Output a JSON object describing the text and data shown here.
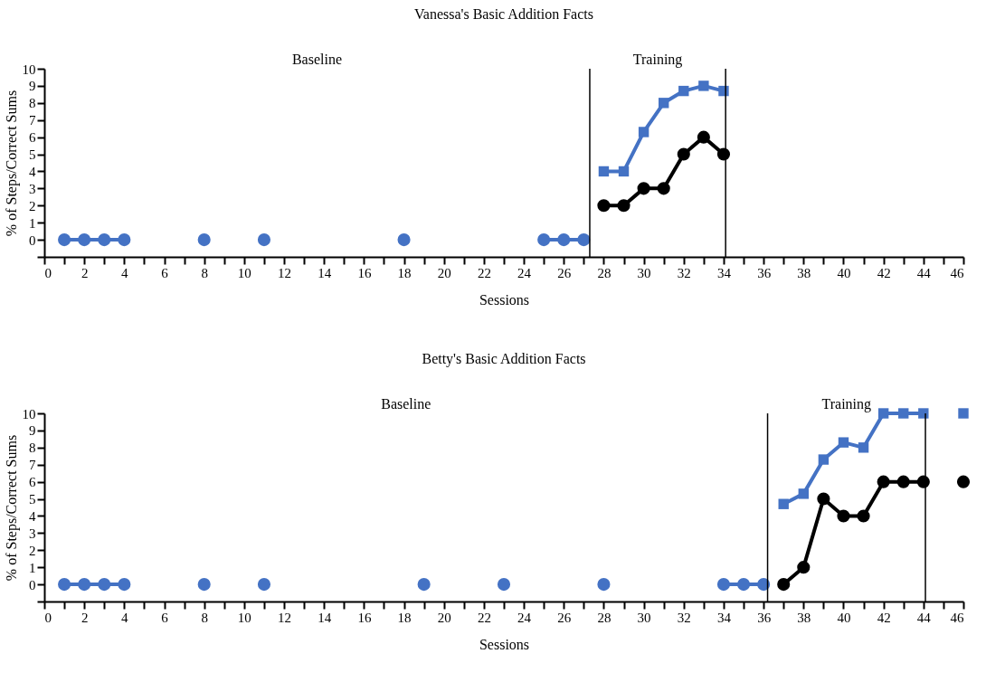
{
  "chart_data": [
    {
      "type": "line",
      "title": "Vanessa's Basic Addition Facts",
      "xlabel": "Sessions",
      "ylabel": "% of Steps/Correct Sums",
      "xlim": [
        0,
        46
      ],
      "ylim": [
        -1,
        10
      ],
      "xticks": [
        0,
        {
          "value": 1,
          "label": null
        },
        2,
        {
          "value": 3,
          "label": null
        },
        4,
        {
          "value": 5,
          "label": null
        },
        6,
        {
          "value": 7,
          "label": null
        },
        8,
        {
          "value": 9,
          "label": null
        },
        10,
        {
          "value": 11,
          "label": null
        },
        12,
        {
          "value": 13,
          "label": null
        },
        14,
        {
          "value": 15,
          "label": null
        },
        16,
        {
          "value": 17,
          "label": null
        },
        18,
        {
          "value": 19,
          "label": null
        },
        20,
        {
          "value": 21,
          "label": null
        },
        22,
        {
          "value": 23,
          "label": null
        },
        24,
        {
          "value": 25,
          "label": null
        },
        26,
        {
          "value": 27,
          "label": null
        },
        28,
        {
          "value": 29,
          "label": null
        },
        30,
        {
          "value": 31,
          "label": null
        },
        32,
        {
          "value": 33,
          "label": null
        },
        34,
        {
          "value": 35,
          "label": null
        },
        36,
        {
          "value": 37,
          "label": null
        },
        38,
        {
          "value": 39,
          "label": null
        },
        40,
        {
          "value": 41,
          "label": null
        },
        42,
        {
          "value": 43,
          "label": null
        },
        44,
        {
          "value": 45,
          "label": null
        },
        46
      ],
      "yticks": [
        {
          "value": -1,
          "label": null
        },
        0,
        1,
        2,
        3,
        4,
        5,
        6,
        7,
        8,
        9,
        10
      ],
      "grid": false,
      "line_style": "solid",
      "series": [
        {
          "color": "#4472c4",
          "marker": "circle",
          "x": [
            1,
            2,
            3,
            4,
            5,
            8,
            9,
            11,
            12,
            18,
            19,
            25,
            26,
            27
          ],
          "values": [
            0,
            0,
            0,
            0,
            null,
            0,
            null,
            0,
            null,
            0,
            null,
            0,
            0,
            0
          ]
        },
        {
          "color": "#4472c4",
          "marker": "square",
          "x": [
            28,
            29,
            30,
            31,
            32,
            33,
            34
          ],
          "values": [
            4,
            4,
            6.3,
            8,
            8.7,
            9,
            8.7
          ]
        },
        {
          "color": "#000000",
          "marker": "circle",
          "x": [
            28,
            29,
            30,
            31,
            32,
            33,
            34
          ],
          "values": [
            2,
            2,
            3,
            3,
            5,
            6,
            5
          ]
        }
      ],
      "ref_lines": [
        {
          "axis": "x",
          "value": 27.3,
          "color": "#000000"
        },
        {
          "axis": "x",
          "value": 34.1,
          "color": "#000000"
        }
      ],
      "annotations": [
        "Baseline",
        "Training"
      ]
    },
    {
      "type": "line",
      "title": "Betty's Basic Addition Facts",
      "xlabel": "Sessions",
      "ylabel": "% of Steps/Correct Sums",
      "xlim": [
        0,
        46
      ],
      "ylim": [
        -1,
        10
      ],
      "xticks": [
        0,
        {
          "value": 1,
          "label": null
        },
        2,
        {
          "value": 3,
          "label": null
        },
        4,
        {
          "value": 5,
          "label": null
        },
        6,
        {
          "value": 7,
          "label": null
        },
        8,
        {
          "value": 9,
          "label": null
        },
        10,
        {
          "value": 11,
          "label": null
        },
        12,
        {
          "value": 13,
          "label": null
        },
        14,
        {
          "value": 15,
          "label": null
        },
        16,
        {
          "value": 17,
          "label": null
        },
        18,
        {
          "value": 19,
          "label": null
        },
        20,
        {
          "value": 21,
          "label": null
        },
        22,
        {
          "value": 23,
          "label": null
        },
        24,
        {
          "value": 25,
          "label": null
        },
        26,
        {
          "value": 27,
          "label": null
        },
        28,
        {
          "value": 29,
          "label": null
        },
        30,
        {
          "value": 31,
          "label": null
        },
        32,
        {
          "value": 33,
          "label": null
        },
        34,
        {
          "value": 35,
          "label": null
        },
        36,
        {
          "value": 37,
          "label": null
        },
        38,
        {
          "value": 39,
          "label": null
        },
        40,
        {
          "value": 41,
          "label": null
        },
        42,
        {
          "value": 43,
          "label": null
        },
        44,
        {
          "value": 45,
          "label": null
        },
        46
      ],
      "yticks": [
        {
          "value": -1,
          "label": null
        },
        0,
        1,
        2,
        3,
        4,
        5,
        6,
        7,
        8,
        9,
        10
      ],
      "grid": false,
      "line_style": "solid",
      "series": [
        {
          "color": "#4472c4",
          "marker": "circle",
          "x": [
            1,
            2,
            3,
            4,
            5,
            8,
            9,
            11,
            12,
            19,
            20,
            23,
            24,
            28,
            29,
            34,
            35,
            36
          ],
          "values": [
            0,
            0,
            0,
            0,
            null,
            0,
            null,
            0,
            null,
            0,
            null,
            0,
            null,
            0,
            null,
            0,
            0,
            0
          ]
        },
        {
          "color": "#4472c4",
          "marker": "square",
          "x": [
            37,
            38,
            39,
            40,
            41,
            42,
            43,
            44,
            45,
            46
          ],
          "values": [
            4.7,
            5.3,
            7.3,
            8.3,
            8,
            10,
            10,
            10,
            null,
            10
          ]
        },
        {
          "color": "#000000",
          "marker": "circle",
          "x": [
            37,
            38,
            39,
            40,
            41,
            42,
            43,
            44,
            45,
            46
          ],
          "values": [
            0,
            1,
            5,
            4,
            4,
            6,
            6,
            6,
            null,
            6
          ]
        }
      ],
      "ref_lines": [
        {
          "axis": "x",
          "value": 36.2,
          "color": "#000000"
        },
        {
          "axis": "x",
          "value": 44.1,
          "color": "#000000"
        }
      ],
      "annotations": [
        "Baseline",
        "Training"
      ]
    }
  ]
}
